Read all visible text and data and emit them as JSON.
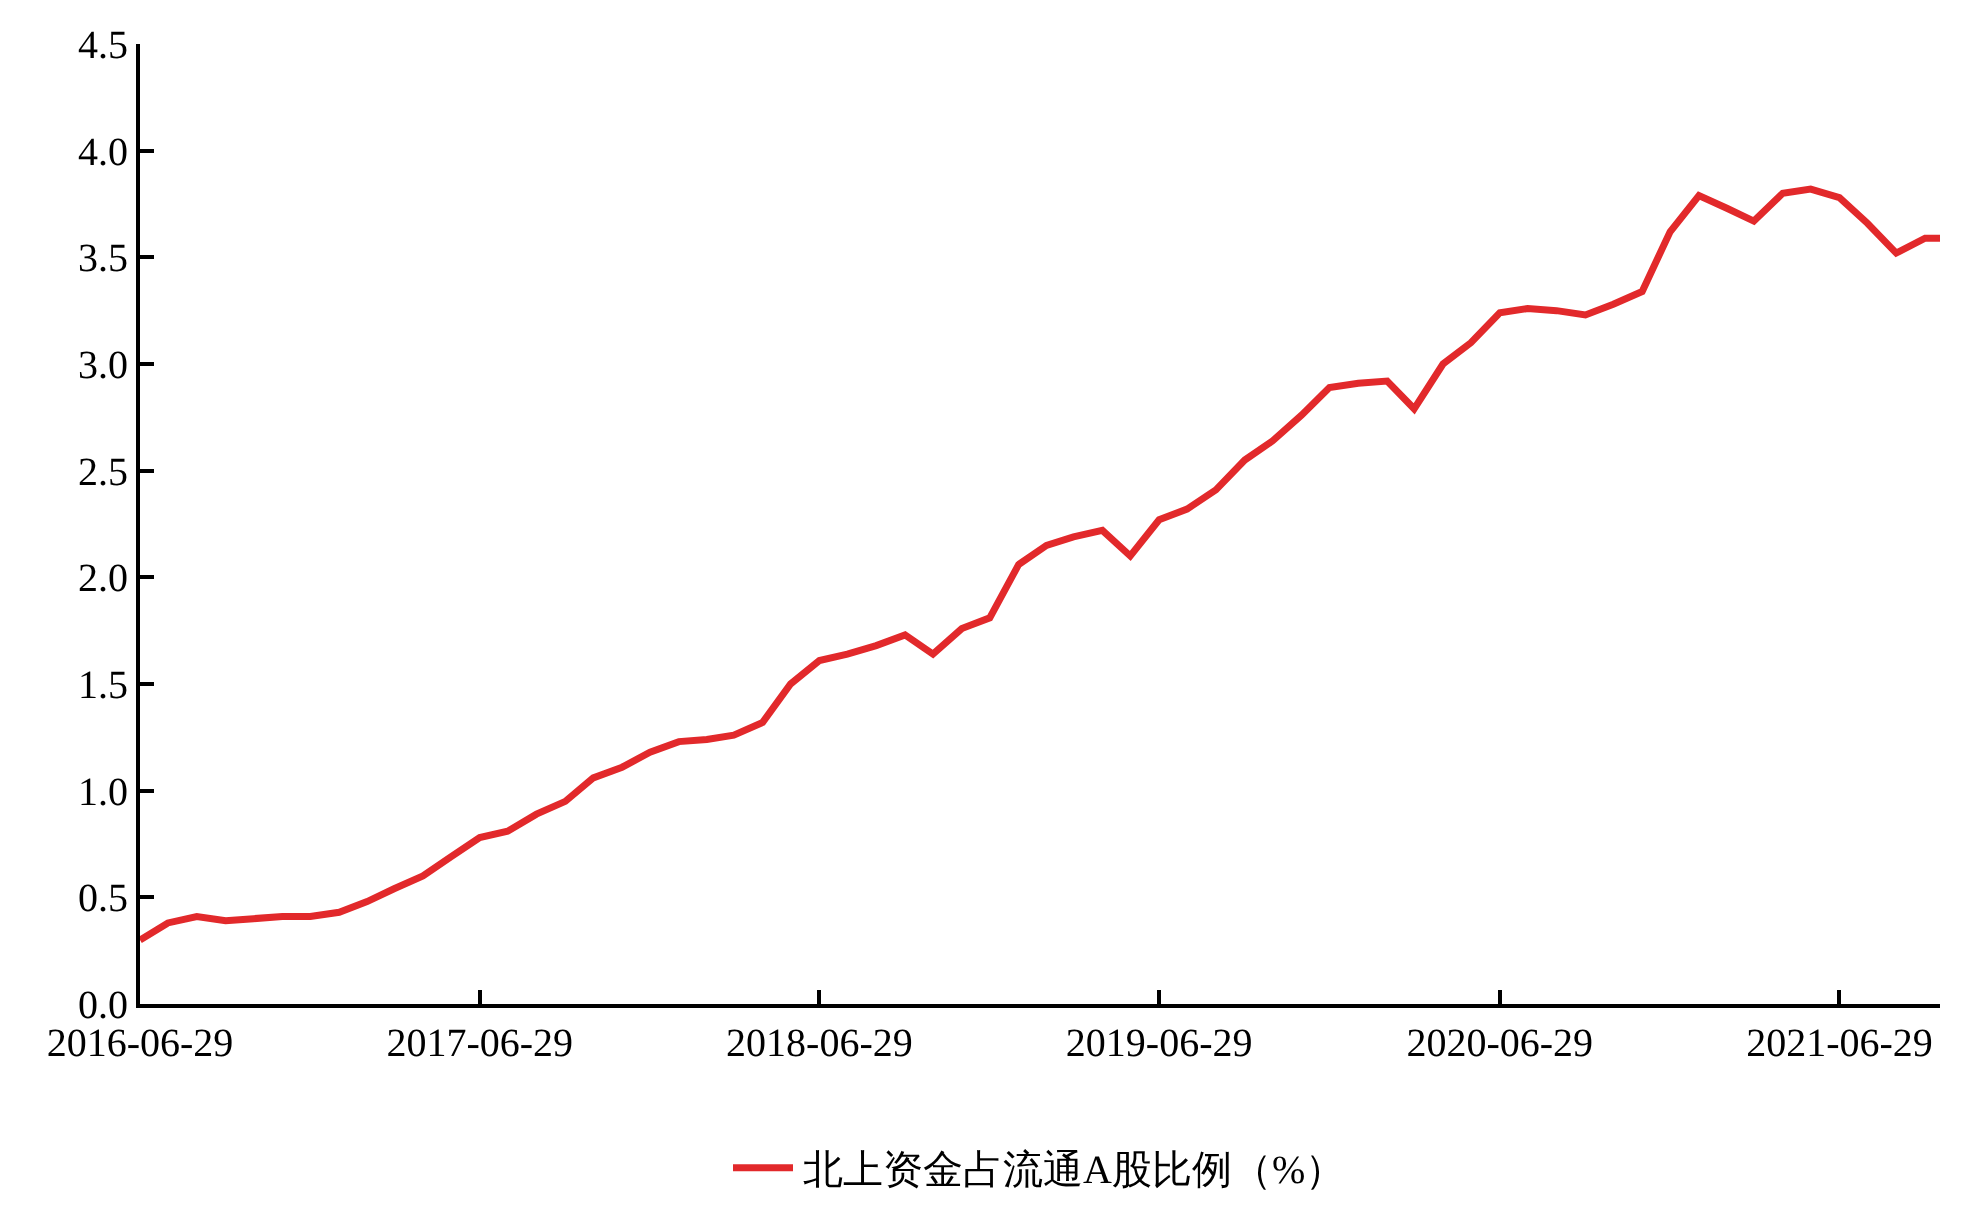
{
  "chart_data": {
    "type": "line",
    "x": [
      "2016-06-29",
      "2016-07-29",
      "2016-08-29",
      "2016-09-29",
      "2016-10-29",
      "2016-11-29",
      "2016-12-29",
      "2017-01-29",
      "2017-02-28",
      "2017-03-29",
      "2017-04-29",
      "2017-05-29",
      "2017-06-29",
      "2017-07-29",
      "2017-08-29",
      "2017-09-29",
      "2017-10-29",
      "2017-11-29",
      "2017-12-29",
      "2018-01-29",
      "2018-02-28",
      "2018-03-29",
      "2018-04-29",
      "2018-05-29",
      "2018-06-29",
      "2018-07-29",
      "2018-08-29",
      "2018-09-29",
      "2018-10-29",
      "2018-11-29",
      "2018-12-29",
      "2019-01-29",
      "2019-02-28",
      "2019-03-29",
      "2019-04-29",
      "2019-05-29",
      "2019-06-29",
      "2019-07-29",
      "2019-08-29",
      "2019-09-29",
      "2019-10-29",
      "2019-11-29",
      "2019-12-29",
      "2020-01-29",
      "2020-02-29",
      "2020-03-29",
      "2020-04-29",
      "2020-05-29",
      "2020-06-29",
      "2020-07-29",
      "2020-08-29",
      "2020-09-29",
      "2020-10-29",
      "2020-11-29",
      "2020-12-29",
      "2021-01-29",
      "2021-02-28",
      "2021-03-29",
      "2021-04-29",
      "2021-05-29",
      "2021-06-29",
      "2021-07-29",
      "2021-08-29",
      "2021-09-29",
      "2021-10-15"
    ],
    "series": [
      {
        "name": "北上资金占流通A股比例（%）",
        "color": "#e2292b",
        "values": [
          0.3,
          0.38,
          0.41,
          0.39,
          0.4,
          0.41,
          0.41,
          0.43,
          0.48,
          0.54,
          0.6,
          0.69,
          0.78,
          0.81,
          0.89,
          0.95,
          1.06,
          1.11,
          1.18,
          1.23,
          1.24,
          1.26,
          1.32,
          1.5,
          1.61,
          1.64,
          1.68,
          1.73,
          1.64,
          1.76,
          1.81,
          2.06,
          2.15,
          2.19,
          2.22,
          2.1,
          2.27,
          2.32,
          2.41,
          2.55,
          2.64,
          2.76,
          2.89,
          2.91,
          2.92,
          2.79,
          3.0,
          3.1,
          3.24,
          3.26,
          3.25,
          3.23,
          3.28,
          3.34,
          3.62,
          3.79,
          3.73,
          3.67,
          3.8,
          3.82,
          3.78,
          3.66,
          3.52,
          3.59,
          3.59
        ]
      }
    ],
    "xlim": [
      "2016-06-29",
      "2021-10-15"
    ],
    "xticks": [
      {
        "value": "2016-06-29",
        "label": "2016-06-29"
      },
      {
        "value": "2017-06-29",
        "label": "2017-06-29"
      },
      {
        "value": "2018-06-29",
        "label": "2018-06-29"
      },
      {
        "value": "2019-06-29",
        "label": "2019-06-29"
      },
      {
        "value": "2020-06-29",
        "label": "2020-06-29"
      },
      {
        "value": "2021-06-29",
        "label": "2021-06-29"
      }
    ],
    "ylim": [
      0,
      4.5
    ],
    "yticks": [
      {
        "value": 0,
        "label": "0.0"
      },
      {
        "value": 0.5,
        "label": "0.5"
      },
      {
        "value": 1,
        "label": "1.0"
      },
      {
        "value": 1.5,
        "label": "1.5"
      },
      {
        "value": 2,
        "label": "2.0"
      },
      {
        "value": 2.5,
        "label": "2.5"
      },
      {
        "value": 3,
        "label": "3.0"
      },
      {
        "value": 3.5,
        "label": "3.5"
      },
      {
        "value": 4,
        "label": "4.0"
      },
      {
        "value": 4.5,
        "label": "4.5"
      }
    ],
    "legend": "bottom",
    "marker": "none",
    "line_style": "solid"
  }
}
